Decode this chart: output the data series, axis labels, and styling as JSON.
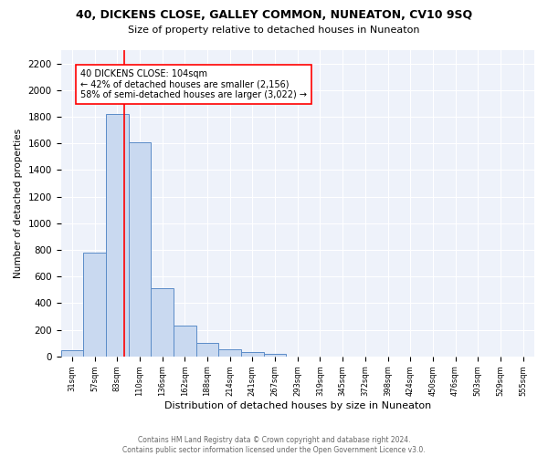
{
  "title1": "40, DICKENS CLOSE, GALLEY COMMON, NUNEATON, CV10 9SQ",
  "title2": "Size of property relative to detached houses in Nuneaton",
  "xlabel": "Distribution of detached houses by size in Nuneaton",
  "ylabel": "Number of detached properties",
  "footnote": "Contains HM Land Registry data © Crown copyright and database right 2024.\nContains public sector information licensed under the Open Government Licence v3.0.",
  "bar_labels": [
    "31sqm",
    "57sqm",
    "83sqm",
    "110sqm",
    "136sqm",
    "162sqm",
    "188sqm",
    "214sqm",
    "241sqm",
    "267sqm",
    "293sqm",
    "319sqm",
    "345sqm",
    "372sqm",
    "398sqm",
    "424sqm",
    "450sqm",
    "476sqm",
    "503sqm",
    "529sqm",
    "555sqm"
  ],
  "bar_values": [
    45,
    780,
    1820,
    1610,
    515,
    230,
    105,
    55,
    35,
    20,
    0,
    0,
    0,
    0,
    0,
    0,
    0,
    0,
    0,
    0,
    0
  ],
  "bar_color": "#c9d9f0",
  "bar_edge_color": "#5b8cc8",
  "ylim": [
    0,
    2300
  ],
  "yticks": [
    0,
    200,
    400,
    600,
    800,
    1000,
    1200,
    1400,
    1600,
    1800,
    2000,
    2200
  ],
  "red_line_x": 2.33,
  "annotation_text": "40 DICKENS CLOSE: 104sqm\n← 42% of detached houses are smaller (2,156)\n58% of semi-detached houses are larger (3,022) →",
  "bg_color": "#eef2fa"
}
